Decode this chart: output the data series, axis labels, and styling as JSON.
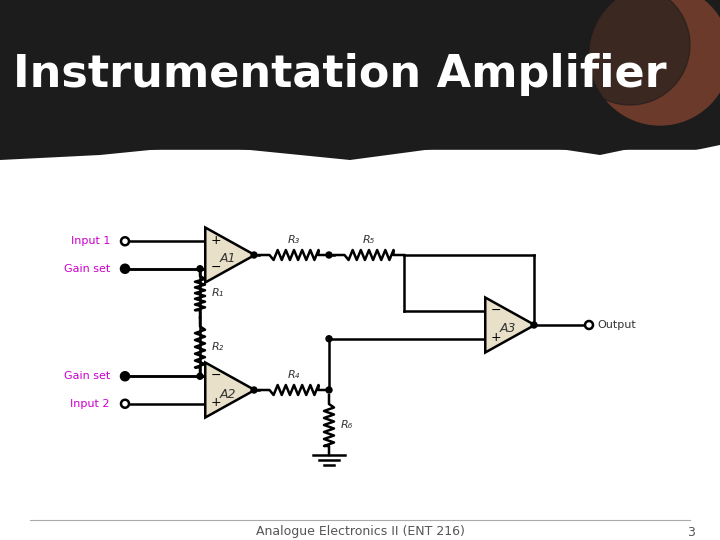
{
  "title": "Instrumentation Amplifier",
  "footer_text": "Analogue Electronics II (ENT 216)",
  "page_number": "3",
  "bg_top_color": "#1a1a1a",
  "bg_bottom_color": "#ffffff",
  "title_color": "#ffffff",
  "magenta_color": "#cc00cc",
  "label_color": "#cc00cc",
  "circuit_line_color": "#000000",
  "opamp_fill": "#e8e0c8",
  "resistor_color": "#000000"
}
